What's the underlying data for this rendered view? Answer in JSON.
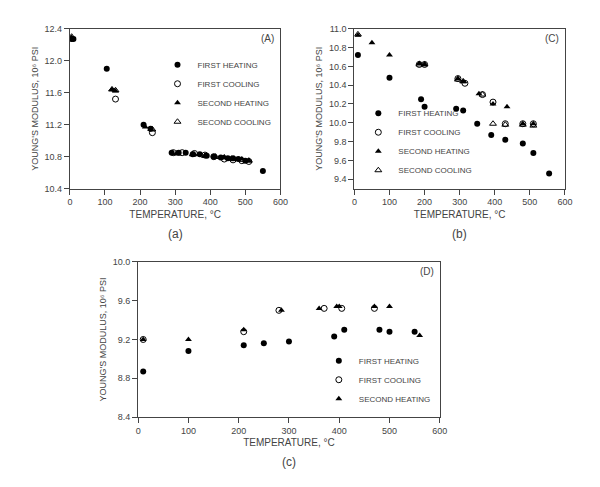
{
  "chart_data": [
    {
      "type": "scatter",
      "title": "(a)",
      "annotations": [
        "(A)"
      ],
      "xlabel": "TEMPERATURE, °C",
      "ylabel": "YOUNG'S MODULUS, 10⁶ PSI",
      "xlim": [
        0,
        600
      ],
      "ylim": [
        10.4,
        12.4
      ],
      "xticks": [
        0,
        100,
        200,
        300,
        400,
        500,
        600
      ],
      "yticks": [
        10.4,
        10.8,
        11.2,
        11.6,
        {
          "value": 12.0,
          "label": "12.0"
        },
        12.4
      ],
      "grid": false,
      "legend": "upper right",
      "series": [
        {
          "name": "FIRST HEATING",
          "color": "black",
          "marker": "circle",
          "x": [
            5,
            10,
            105,
            210,
            230,
            290,
            310,
            330,
            350,
            370,
            390,
            410,
            430,
            450,
            465,
            480,
            500,
            550
          ],
          "values": [
            12.27,
            12.27,
            11.9,
            11.2,
            11.15,
            10.85,
            10.85,
            10.85,
            10.83,
            10.83,
            10.81,
            10.8,
            10.79,
            10.78,
            10.78,
            10.77,
            10.75,
            10.62
          ]
        },
        {
          "name": "FIRST COOLING",
          "color": "black",
          "marker": "circle-open",
          "x": [
            130,
            235,
            295,
            320,
            355,
            385,
            410,
            440,
            465,
            490,
            510
          ],
          "values": [
            11.52,
            11.1,
            10.85,
            10.85,
            10.84,
            10.82,
            10.8,
            10.77,
            10.76,
            10.75,
            10.74
          ]
        },
        {
          "name": "SECOND HEATING",
          "color": "black",
          "marker": "triangle-up",
          "x": [
            5,
            120,
            130,
            215,
            230,
            305,
            355,
            385,
            415,
            440,
            460,
            490,
            510
          ],
          "values": [
            12.29,
            11.64,
            11.62,
            11.17,
            11.14,
            10.84,
            10.83,
            10.81,
            10.79,
            10.79,
            10.78,
            10.77,
            10.75
          ]
        },
        {
          "name": "SECOND COOLING",
          "color": "black",
          "marker": "triangle-up-open",
          "x": [
            5,
            120,
            130,
            235,
            305,
            350,
            385,
            415,
            440,
            465,
            490,
            510
          ],
          "values": [
            12.3,
            11.64,
            11.63,
            11.14,
            10.84,
            10.83,
            10.81,
            10.8,
            10.79,
            10.77,
            10.76,
            10.75
          ]
        }
      ]
    },
    {
      "type": "scatter",
      "title": "(b)",
      "annotations": [
        "(C)"
      ],
      "xlabel": "TEMPERATURE, °C",
      "ylabel": "YOUNG'S MODULUS, 10⁶ PSI",
      "xlim": [
        0,
        600
      ],
      "ylim": [
        9.3,
        11.0
      ],
      "xticks": [
        0,
        100,
        200,
        300,
        400,
        500,
        600
      ],
      "yticks": [
        9.4,
        9.6,
        9.8,
        {
          "value": 10.0,
          "label": "10.0"
        },
        10.2,
        10.4,
        10.6,
        10.8,
        {
          "value": 11.0,
          "label": "11.0"
        }
      ],
      "grid": false,
      "legend": "lower left",
      "series": [
        {
          "name": "FIRST HEATING",
          "color": "black",
          "marker": "circle",
          "x": [
            10,
            100,
            190,
            200,
            290,
            310,
            350,
            390,
            430,
            480,
            510,
            555
          ],
          "values": [
            10.72,
            10.48,
            10.25,
            10.17,
            10.15,
            10.13,
            9.99,
            9.87,
            9.82,
            9.78,
            9.68,
            9.46
          ]
        },
        {
          "name": "FIRST COOLING",
          "color": "black",
          "marker": "circle-open",
          "x": [
            185,
            200,
            295,
            315,
            365,
            395,
            430,
            480,
            510
          ],
          "values": [
            10.62,
            10.62,
            10.47,
            10.42,
            10.3,
            10.22,
            9.99,
            9.99,
            9.99
          ]
        },
        {
          "name": "SECOND HEATING",
          "color": "black",
          "marker": "triangle-up",
          "x": [
            10,
            50,
            100,
            185,
            200,
            295,
            310,
            355,
            395,
            435,
            480,
            510
          ],
          "values": [
            10.93,
            10.85,
            10.72,
            10.63,
            10.62,
            10.47,
            10.44,
            10.31,
            10.2,
            10.17,
            9.99,
            9.99
          ]
        },
        {
          "name": "SECOND COOLING",
          "color": "black",
          "marker": "triangle-up-open",
          "x": [
            10,
            185,
            200,
            295,
            310,
            365,
            395,
            430,
            480,
            510
          ],
          "values": [
            10.94,
            10.62,
            10.62,
            10.46,
            10.44,
            10.3,
            9.99,
            9.98,
            9.98,
            9.97
          ]
        }
      ]
    },
    {
      "type": "scatter",
      "title": "(c)",
      "annotations": [
        "(D)"
      ],
      "xlabel": "TEMPERATURE, °C",
      "ylabel": "YOUNG'S MODULUS, 10⁶ PSI",
      "xlim": [
        0,
        600
      ],
      "ylim": [
        8.4,
        10.0
      ],
      "xticks": [
        0,
        100,
        200,
        300,
        400,
        500,
        600
      ],
      "yticks": [
        8.4,
        8.8,
        9.2,
        9.6,
        {
          "value": 10.0,
          "label": "10.0"
        }
      ],
      "grid": false,
      "legend": "lower right",
      "series": [
        {
          "name": "FIRST HEATING",
          "color": "black",
          "marker": "circle",
          "x": [
            10,
            100,
            210,
            250,
            300,
            390,
            410,
            480,
            500,
            550
          ],
          "values": [
            8.87,
            9.08,
            9.14,
            9.16,
            9.18,
            9.23,
            9.3,
            9.3,
            9.28,
            9.28
          ]
        },
        {
          "name": "FIRST COOLING",
          "color": "black",
          "marker": "circle-open",
          "x": [
            10,
            210,
            280,
            370,
            405,
            470
          ],
          "values": [
            9.2,
            9.28,
            9.5,
            9.52,
            9.52,
            9.52
          ]
        },
        {
          "name": "SECOND HEATING",
          "color": "black",
          "marker": "triangle-up",
          "x": [
            10,
            100,
            210,
            285,
            360,
            395,
            400,
            470,
            500,
            560
          ],
          "values": [
            9.2,
            9.2,
            9.3,
            9.5,
            9.52,
            9.54,
            9.54,
            9.54,
            9.54,
            9.24
          ]
        }
      ]
    }
  ]
}
